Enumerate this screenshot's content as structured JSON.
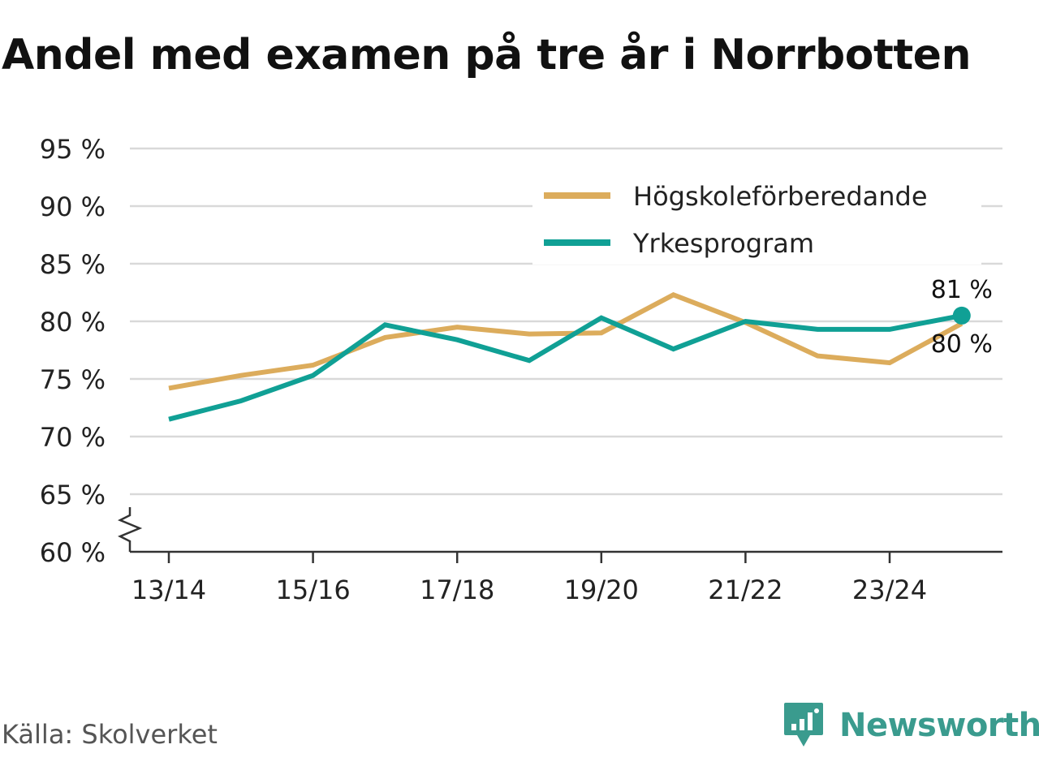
{
  "title": "Andel med examen på tre år i Norrbotten",
  "source": "Källa: Skolverket",
  "logo_text": "Newsworthy",
  "colors": {
    "hogskole": "#dcac5c",
    "yrkes": "#10a095",
    "grid": "#d9d9d9",
    "axis": "#333333",
    "logo": "#3a9b8e"
  },
  "chart_data": {
    "type": "line",
    "title": "Andel med examen på tre år i Norrbotten",
    "x": [
      "13/14",
      "14/15",
      "15/16",
      "16/17",
      "17/18",
      "18/19",
      "19/20",
      "20/21",
      "21/22",
      "22/23",
      "23/24",
      "24/25"
    ],
    "x_tick_labels": [
      "13/14",
      "15/16",
      "17/18",
      "19/20",
      "21/22",
      "23/24"
    ],
    "y_ticks": [
      60,
      65,
      70,
      75,
      80,
      85,
      90,
      95
    ],
    "y_tick_labels": [
      "60 %",
      "65 %",
      "70 %",
      "75 %",
      "80 %",
      "85 %",
      "90 %",
      "95 %"
    ],
    "ylim": [
      60,
      95
    ],
    "y_axis_break": true,
    "grid": true,
    "legend_position": "top-right",
    "series": [
      {
        "name": "Högskoleförberedande",
        "color_key": "hogskole",
        "values": [
          74.2,
          75.3,
          76.2,
          78.6,
          79.5,
          78.9,
          79.0,
          82.3,
          79.9,
          77.0,
          76.4,
          79.8
        ],
        "end_label": "80 %"
      },
      {
        "name": "Yrkesprogram",
        "color_key": "yrkes",
        "values": [
          71.5,
          73.1,
          75.3,
          79.7,
          78.4,
          76.6,
          80.3,
          77.6,
          80.0,
          79.3,
          79.3,
          80.5
        ],
        "end_label": "81 %"
      }
    ]
  }
}
